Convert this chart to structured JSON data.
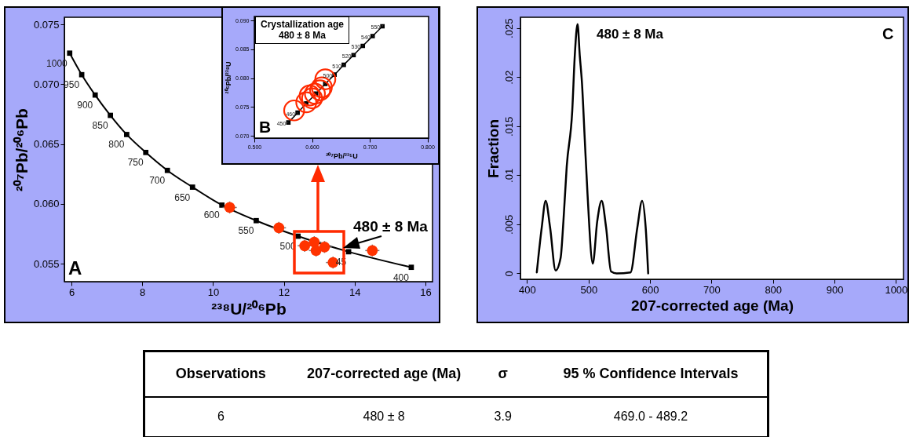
{
  "chart_data": [
    {
      "type": "scatter",
      "xlabel": "²³⁸U/²⁰⁶Pb",
      "ylabel": "²⁰⁷Pb/²⁰⁶Pb",
      "xlim": [
        5.8,
        16.2
      ],
      "ylim": [
        0.0535,
        0.0756
      ],
      "xticks": [
        6,
        8,
        10,
        12,
        14,
        16
      ],
      "yticks": [
        {
          "value": 0.055,
          "label": "0.055"
        },
        {
          "value": 0.06,
          "label": "0.060"
        },
        {
          "value": 0.065,
          "label": "0.065"
        },
        {
          "value": 0.07,
          "label": "0.070"
        },
        {
          "value": 0.075,
          "label": "0.075"
        }
      ],
      "series": [
        {
          "type": "line",
          "marker": "square",
          "color": "#000000",
          "x": [
            5.95,
            6.29,
            6.67,
            7.1,
            7.56,
            8.1,
            8.71,
            9.42,
            10.25,
            11.22,
            12.4,
            13.83,
            15.6
          ],
          "values": [
            0.0726,
            0.0708,
            0.0691,
            0.0674,
            0.0658,
            0.0643,
            0.0628,
            0.0614,
            0.0599,
            0.0586,
            0.0573,
            0.056,
            0.0547
          ]
        },
        {
          "type": "scatter",
          "marker": "circle",
          "color": "#ff3300",
          "x": [
            10.47,
            11.86,
            12.59,
            12.86,
            12.91,
            13.15,
            13.39,
            14.5
          ],
          "values": [
            0.0597,
            0.058,
            0.0565,
            0.0568,
            0.0561,
            0.0564,
            0.0551,
            0.0561
          ],
          "errors": [
            0.0005,
            0.0005,
            0.0005,
            0.0005,
            0.0005,
            0.0005,
            0.0005,
            0.0005
          ],
          "xerrors": [
            0.2,
            0.2,
            0.2,
            0.2,
            0.2,
            0.2,
            0.2,
            0.2
          ]
        }
      ],
      "annotations": [
        "A",
        "480 ± 8 Ma",
        {
          "text": "1000",
          "x": 5.95,
          "y": 0.0726
        },
        {
          "text": "950",
          "x": 6.29,
          "y": 0.0708
        },
        {
          "text": "900",
          "x": 6.67,
          "y": 0.0691
        },
        {
          "text": "850",
          "x": 7.1,
          "y": 0.0674
        },
        {
          "text": "800",
          "x": 7.56,
          "y": 0.0658
        },
        {
          "text": "750",
          "x": 8.1,
          "y": 0.0643
        },
        {
          "text": "700",
          "x": 8.71,
          "y": 0.0628
        },
        {
          "text": "650",
          "x": 9.42,
          "y": 0.0614
        },
        {
          "text": "600",
          "x": 10.25,
          "y": 0.0599
        },
        {
          "text": "550",
          "x": 11.22,
          "y": 0.0586
        },
        {
          "text": "500",
          "x": 12.4,
          "y": 0.0573
        },
        {
          "text": "45",
          "x": 13.83,
          "y": 0.056
        },
        {
          "text": "400",
          "x": 15.6,
          "y": 0.0547
        }
      ]
    },
    {
      "type": "scatter",
      "xlabel": "²⁰⁷Pb/²³⁵U",
      "ylabel": "²⁰⁶Pb/²³⁸U",
      "xlim": [
        0.5,
        0.802
      ],
      "ylim": [
        0.0696,
        0.0907
      ],
      "xticks": [
        {
          "value": 0.5,
          "label": "0.500"
        },
        {
          "value": 0.6,
          "label": "0.600"
        },
        {
          "value": 0.7,
          "label": "0.700"
        },
        {
          "value": 0.8,
          "label": "0.800"
        }
      ],
      "yticks": [
        {
          "value": 0.07,
          "label": "0.070"
        },
        {
          "value": 0.075,
          "label": "0.075"
        },
        {
          "value": 0.08,
          "label": "0.080"
        },
        {
          "value": 0.085,
          "label": "0.085"
        },
        {
          "value": 0.09,
          "label": "0.090"
        }
      ],
      "series": [
        {
          "type": "line",
          "marker": "square",
          "color": "#000000",
          "x": [
            0.559,
            0.575,
            0.59,
            0.607,
            0.623,
            0.639,
            0.655,
            0.672,
            0.688,
            0.705,
            0.722
          ],
          "values": [
            0.0723,
            0.074,
            0.0756,
            0.0773,
            0.079,
            0.0806,
            0.0823,
            0.084,
            0.0856,
            0.0873,
            0.089
          ]
        },
        {
          "type": "scatter",
          "marker": "circle",
          "color": "#ff2a00",
          "x": [
            0.569,
            0.59,
            0.596,
            0.6,
            0.605,
            0.614,
            0.617,
            0.623
          ],
          "values": [
            0.0744,
            0.0758,
            0.077,
            0.0765,
            0.0773,
            0.0779,
            0.0784,
            0.0798
          ]
        }
      ],
      "annotations": [
        "B",
        "Crystallization age\n480 ± 8 Ma",
        {
          "text": "450",
          "x": 0.559,
          "y": 0.0723
        },
        {
          "text": "460",
          "x": 0.575,
          "y": 0.074
        },
        {
          "text": "500",
          "x": 0.639,
          "y": 0.0806
        },
        {
          "text": "510",
          "x": 0.655,
          "y": 0.0823
        },
        {
          "text": "520",
          "x": 0.672,
          "y": 0.084
        },
        {
          "text": "530",
          "x": 0.688,
          "y": 0.0856
        },
        {
          "text": "540",
          "x": 0.705,
          "y": 0.0873
        },
        {
          "text": "550",
          "x": 0.722,
          "y": 0.089
        }
      ]
    },
    {
      "type": "line",
      "xlabel": "207-corrected age (Ma)",
      "ylabel": "Fraction",
      "xlim": [
        389.2,
        1012.3
      ],
      "ylim": [
        -0.0006,
        0.0261
      ],
      "xticks": [
        400,
        500,
        600,
        700,
        800,
        900,
        1000
      ],
      "yticks": [
        0,
        {
          "value": 0.005,
          "label": ".005"
        },
        {
          "value": 0.01,
          "label": ".01"
        },
        {
          "value": 0.015,
          "label": ".015"
        },
        {
          "value": 0.02,
          "label": ".02"
        },
        {
          "value": 0.025,
          "label": ".025"
        }
      ],
      "series": [
        {
          "color": "#000000",
          "x": [
            415.8,
            423.9,
            430.2,
            437.4,
            446.4,
            454.6,
            459.1,
            464.5,
            473.5,
            477.6,
            482.1,
            485.7,
            489.3,
            493.8,
            498.3,
            506.9,
            514.1,
            521.3,
            528.5,
            536.6,
            545.7,
            568.2,
            579.4,
            587.1,
            592.9,
            597.0
          ],
          "values": [
            0.0001,
            0.0047,
            0.0074,
            0.0047,
            0.0003,
            0.0016,
            0.0053,
            0.0109,
            0.0166,
            0.0222,
            0.0254,
            0.0222,
            0.0194,
            0.0137,
            0.0081,
            0.001,
            0.0053,
            0.0074,
            0.0047,
            0.0002,
            0,
            0.0001,
            0.0047,
            0.0074,
            0.0047,
            0
          ]
        }
      ],
      "annotations": [
        "C",
        "480 ± 8 Ma"
      ]
    },
    {
      "type": "other",
      "annotations": [
        "Observations",
        "207-corrected age (Ma)",
        "σ",
        "95 % Confidence Intervals",
        "6",
        "480 ± 8",
        "3.9",
        "469.0 - 489.2"
      ]
    }
  ]
}
